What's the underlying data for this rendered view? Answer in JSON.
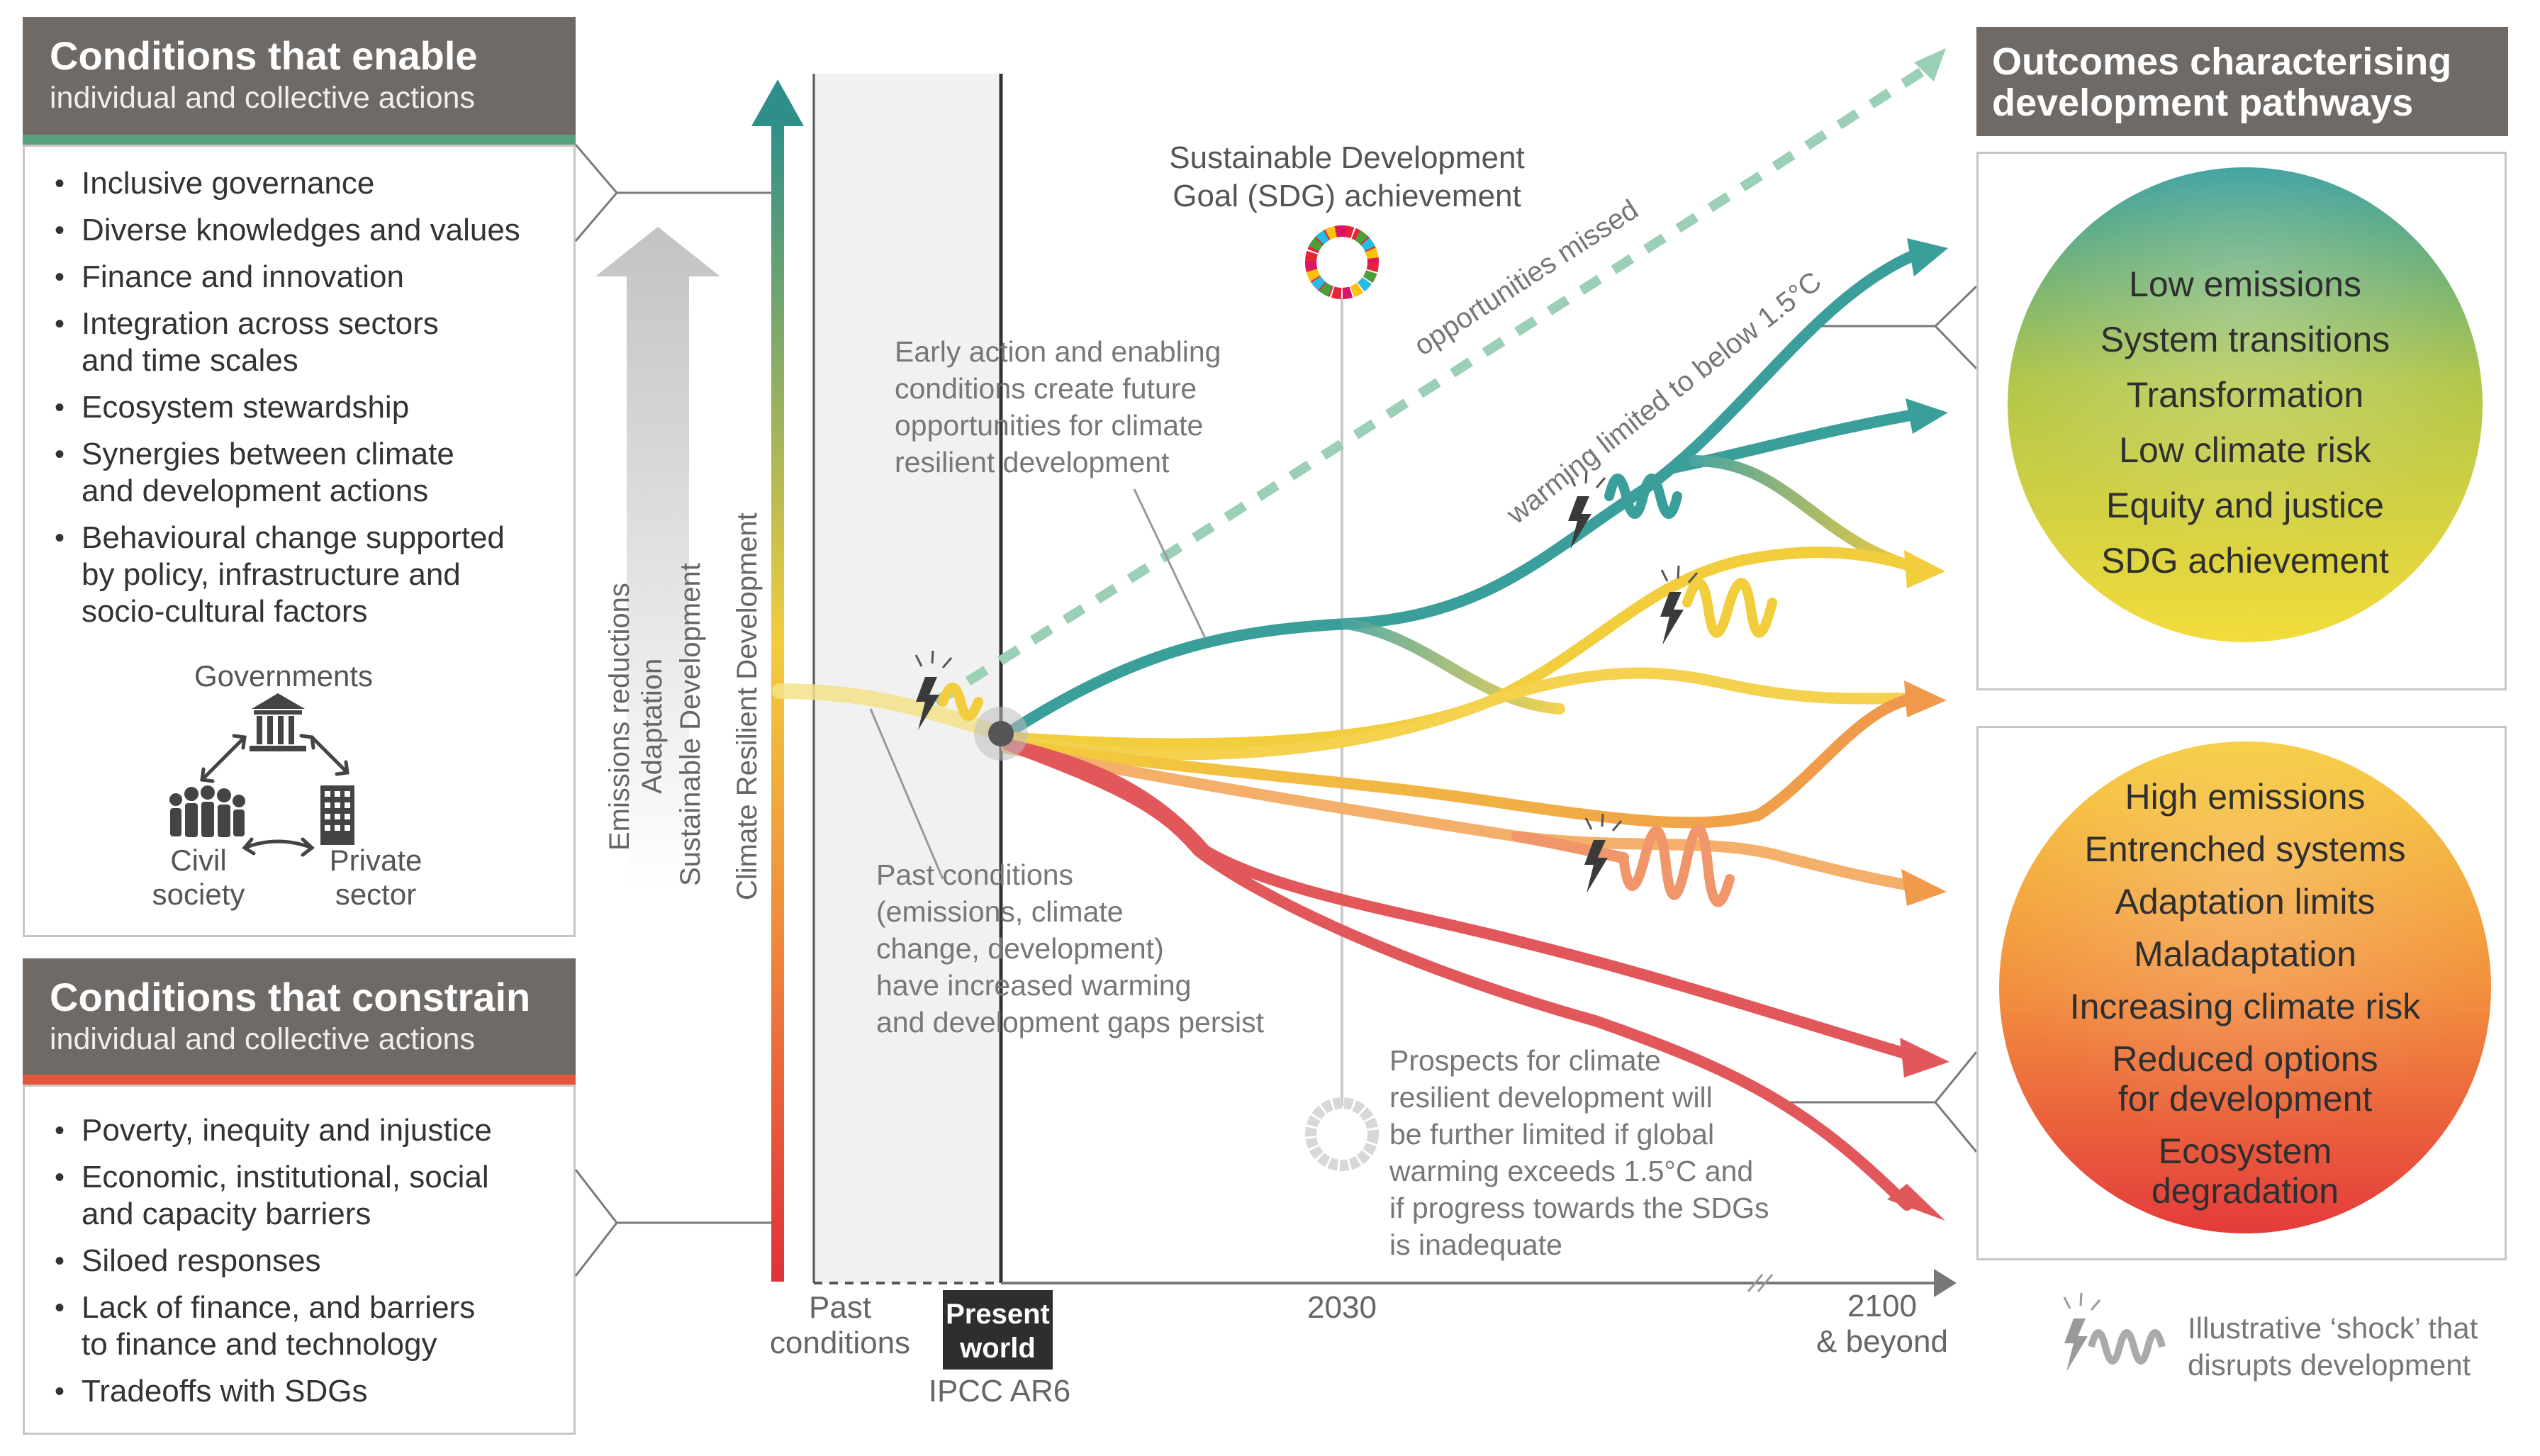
{
  "enable": {
    "title": "Conditions that enable",
    "subtitle": "individual and collective actions",
    "accent": "#5aa080",
    "items": [
      [
        "Inclusive governance"
      ],
      [
        "Diverse knowledges and values"
      ],
      [
        "Finance and innovation"
      ],
      [
        "Integration across sectors",
        "and time scales"
      ],
      [
        "Ecosystem stewardship"
      ],
      [
        "Synergies between climate",
        "and development actions"
      ],
      [
        "Behavioural change supported",
        "by policy, infrastructure and",
        "socio-cultural factors"
      ]
    ],
    "actors": {
      "governments": "Governments",
      "civil": [
        "Civil",
        "society"
      ],
      "private": [
        "Private",
        "sector"
      ]
    }
  },
  "constrain": {
    "title": "Conditions that constrain",
    "subtitle": "individual and collective actions",
    "accent": "#e2573c",
    "items": [
      [
        "Poverty, inequity and injustice"
      ],
      [
        "Economic, institutional, social",
        "and capacity barriers"
      ],
      [
        "Siloed responses"
      ],
      [
        "Lack of finance, and barriers",
        "to finance and technology"
      ],
      [
        "Tradeoffs with SDGs"
      ]
    ]
  },
  "arrow_labels": [
    "Emissions reductions",
    "Adaptation",
    "Sustainable Development",
    "Climate Resilient Development"
  ],
  "chart": {
    "sdg_title": [
      "Sustainable Development",
      "Goal (SDG) achievement"
    ],
    "opportunities_missed": "opportunities missed",
    "warming_limited": "warming limited to below 1.5°C",
    "early_action": [
      "Early action and enabling",
      "conditions create future",
      "opportunities for climate",
      "resilient development"
    ],
    "past_conditions_note": [
      "Past conditions",
      "(emissions, climate",
      "change, development)",
      "have increased warming",
      "and development gaps persist"
    ],
    "prospects": [
      "Prospects for climate",
      "resilient development will",
      "be further limited if global",
      "warming exceeds 1.5°C and",
      "if progress towards the SDGs",
      "is inadequate"
    ],
    "axis": {
      "past": [
        "Past",
        "conditions"
      ],
      "present": [
        "Present",
        "world"
      ],
      "ipcc": "IPCC AR6",
      "y2030": "2030",
      "y2100": [
        "2100",
        "& beyond"
      ]
    }
  },
  "outcomes": {
    "title": [
      "Outcomes characterising",
      "development pathways"
    ],
    "positive": [
      "Low emissions",
      "System transitions",
      "Transformation",
      "Low climate risk",
      "Equity and justice",
      "SDG achievement"
    ],
    "negative": [
      [
        "High emissions"
      ],
      [
        "Entrenched systems"
      ],
      [
        "Adaptation limits"
      ],
      [
        "Maladaptation"
      ],
      [
        "Increasing climate risk"
      ],
      [
        "Reduced options",
        "for development"
      ],
      [
        "Ecosystem",
        "degradation"
      ]
    ]
  },
  "legend": [
    "Illustrative ‘shock’ that",
    "disrupts development"
  ],
  "colors": {
    "teal": "#3a9e9a",
    "yellow": "#f2cd3c",
    "orange": "#f09a4c",
    "red": "#e2575a",
    "header_grey": "#6f6a66"
  }
}
